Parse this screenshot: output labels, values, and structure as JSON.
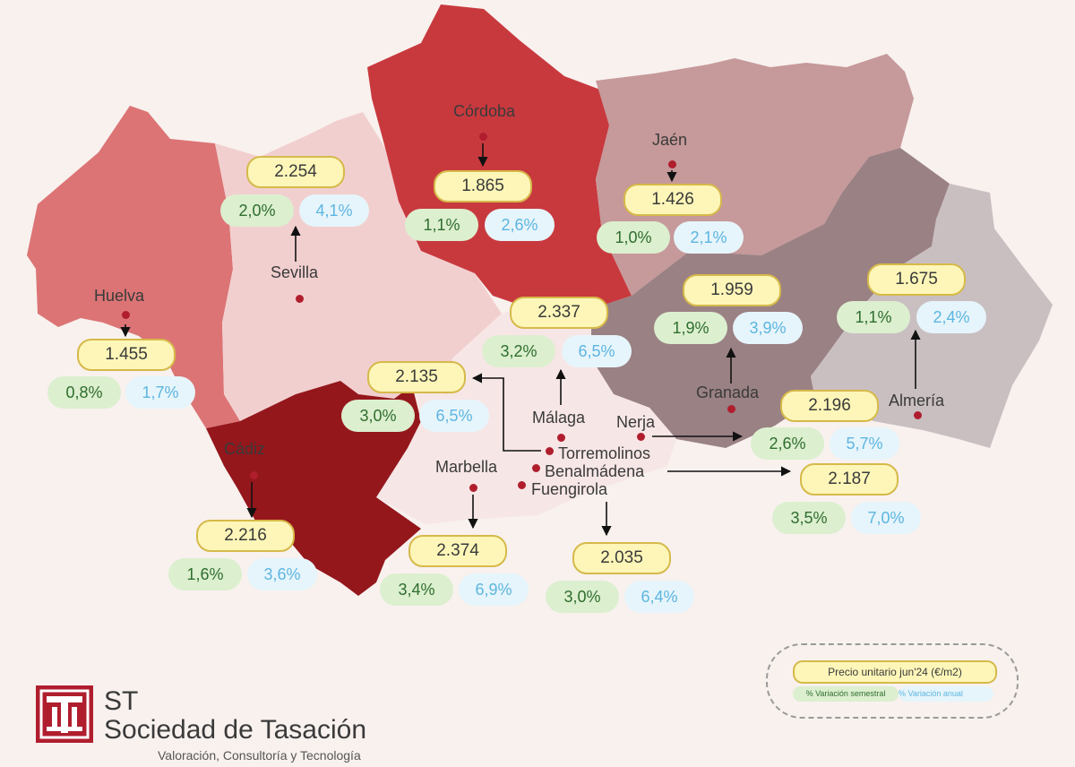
{
  "colors": {
    "background": "#f8f1ee",
    "huelva": "#dc7475",
    "sevilla": "#f2cfcf",
    "cordoba": "#c8393e",
    "jaen": "#c6999a",
    "granada": "#9a8184",
    "almeria": "#c9bfc1",
    "malaga": "#f7e6e6",
    "cadiz": "#94171c",
    "dot": "#b01e2e",
    "price_fill": "#fdf6b8",
    "price_border": "#d6b94a",
    "semestral_fill": "#dcefcf",
    "semestral_text": "#2e6e2e",
    "anual_fill": "#e6f5fb",
    "anual_text": "#5db5e0"
  },
  "cities": {
    "sevilla": {
      "name": "Sevilla",
      "price": "2.254",
      "semestral": "2,0%",
      "anual": "4,1%"
    },
    "cordoba": {
      "name": "Córdoba",
      "price": "1.865",
      "semestral": "1,1%",
      "anual": "2,6%"
    },
    "jaen": {
      "name": "Jaén",
      "price": "1.426",
      "semestral": "1,0%",
      "anual": "2,1%"
    },
    "granada": {
      "name": "Granada",
      "price": "1.959",
      "semestral": "1,9%",
      "anual": "3,9%"
    },
    "almeria": {
      "name": "Almería",
      "price": "1.675",
      "semestral": "1,1%",
      "anual": "2,4%"
    },
    "huelva": {
      "name": "Huelva",
      "price": "1.455",
      "semestral": "0,8%",
      "anual": "1,7%"
    },
    "malaga": {
      "name": "Málaga",
      "price": "2.337",
      "semestral": "3,2%",
      "anual": "6,5%"
    },
    "torremolinos": {
      "name": "Torremolinos",
      "price": "2.135",
      "semestral": "3,0%",
      "anual": "6,5%"
    },
    "nerja": {
      "name": "Nerja",
      "price": "2.196",
      "semestral": "2,6%",
      "anual": "5,7%"
    },
    "benalmadena": {
      "name": "Benalmádena",
      "price": "2.187",
      "semestral": "3,5%",
      "anual": "7,0%"
    },
    "cadiz": {
      "name": "Cádiz",
      "price": "2.216",
      "semestral": "1,6%",
      "anual": "3,6%"
    },
    "marbella": {
      "name": "Marbella",
      "price": "2.374",
      "semestral": "3,4%",
      "anual": "6,9%"
    },
    "fuengirola": {
      "name": "Fuengirola",
      "price": "2.035",
      "semestral": "3,0%",
      "anual": "6,4%"
    }
  },
  "legend": {
    "price_label": "Precio unitario jun'24 (€/m2)",
    "semestral_label": "% Variación semestral",
    "anual_label": "% Variación anual"
  },
  "logo": {
    "abbr": "ST",
    "name": "Sociedad de Tasación",
    "tagline": "Valoración, Consultoría y Tecnología"
  }
}
